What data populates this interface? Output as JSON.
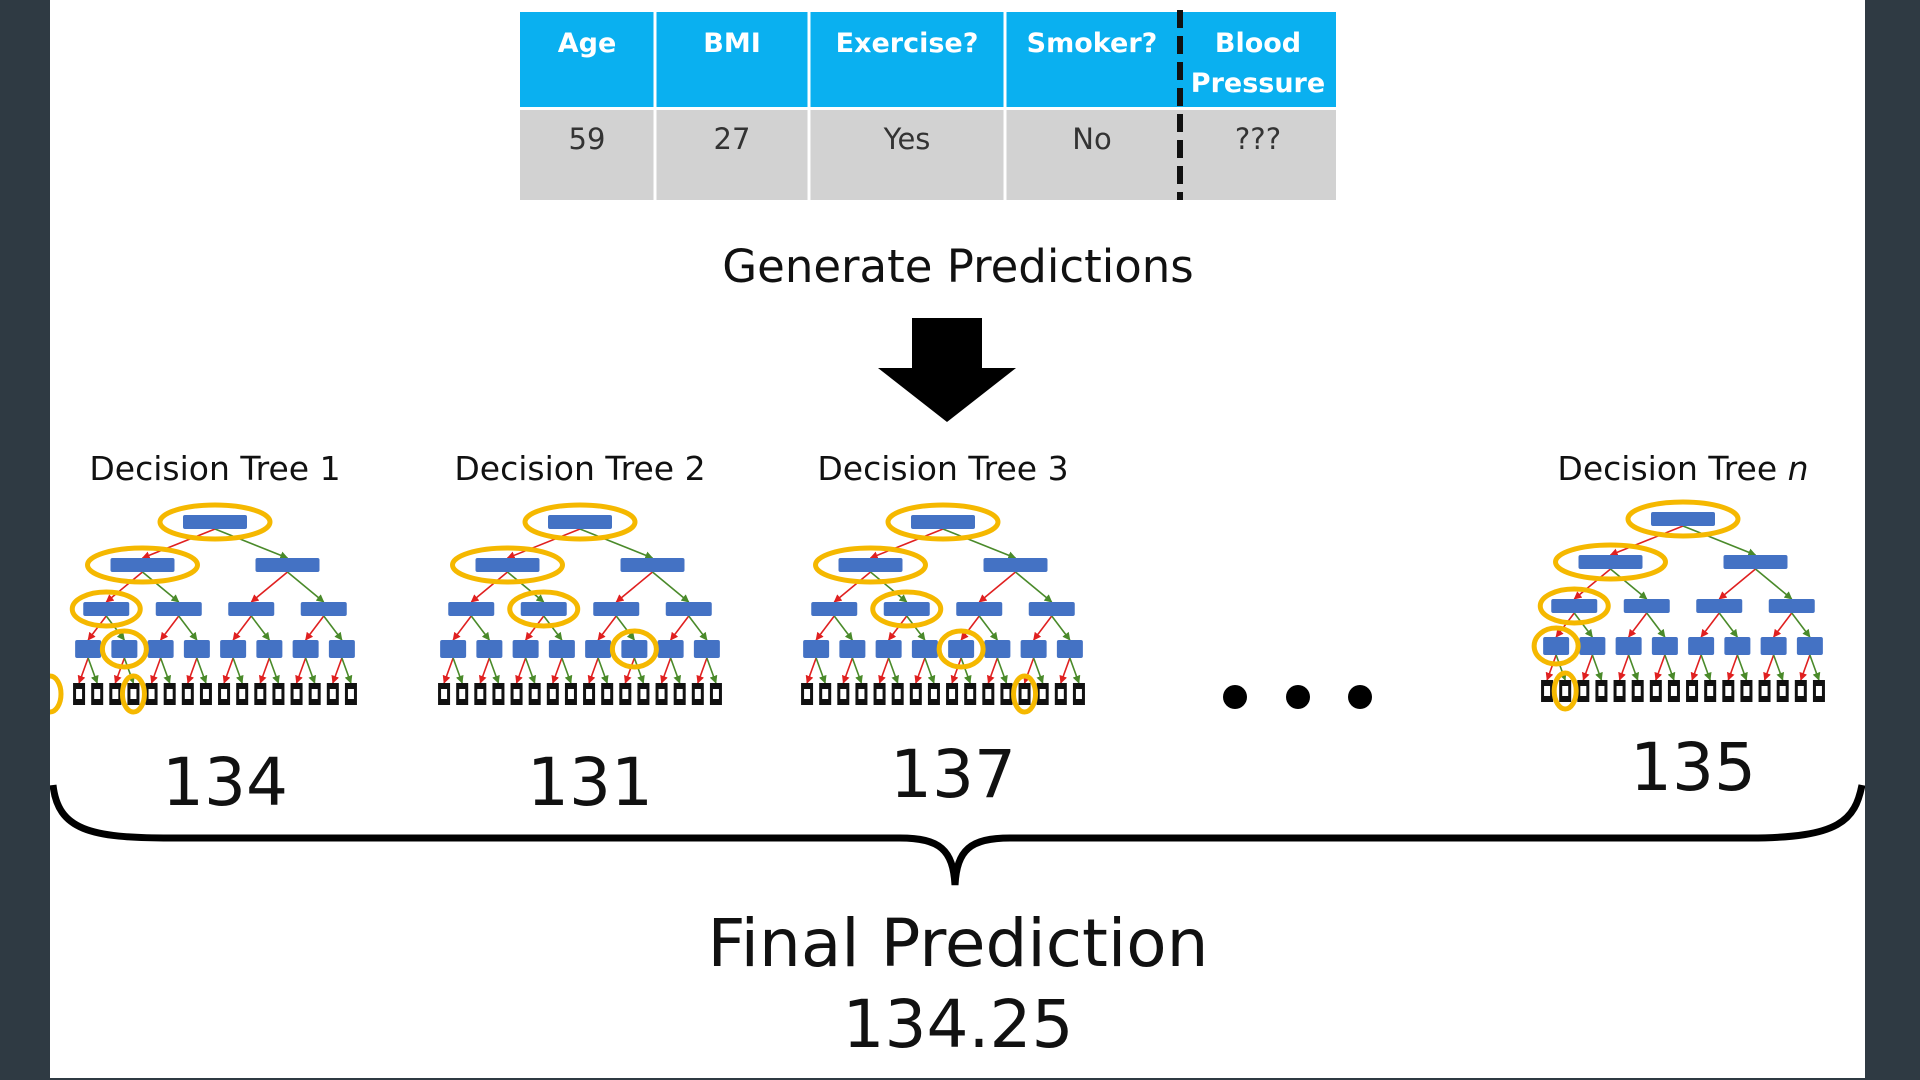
{
  "table": {
    "headers": [
      "Age",
      "BMI",
      "Exercise?",
      "Smoker?",
      "Blood",
      "Pressure"
    ],
    "row": [
      "59",
      "27",
      "Yes",
      "No",
      "???"
    ],
    "header_color": "#0ab0f0",
    "row_color": "#d2d2d2"
  },
  "heading": "Generate Predictions",
  "trees": [
    {
      "title": "Decision Tree 1",
      "value": "134",
      "path": [
        0,
        0,
        1,
        1
      ]
    },
    {
      "title": "Decision Tree 2",
      "value": "131",
      "path": [
        0,
        1,
        3,
        6
      ]
    },
    {
      "title": "Decision Tree 3",
      "value": "137",
      "path": [
        0,
        1,
        2,
        4
      ]
    },
    {
      "title": "Decision Tree ",
      "title_italic": "n",
      "value": "135",
      "path": [
        0,
        0,
        0,
        1
      ]
    }
  ],
  "final": {
    "label": "Final Prediction",
    "value": "134.25"
  },
  "colors": {
    "node": "#4472c4",
    "highlight": "#f5b800",
    "left_edge": "#e02020",
    "right_edge": "#4a8a2a",
    "leaf": "#111111"
  }
}
